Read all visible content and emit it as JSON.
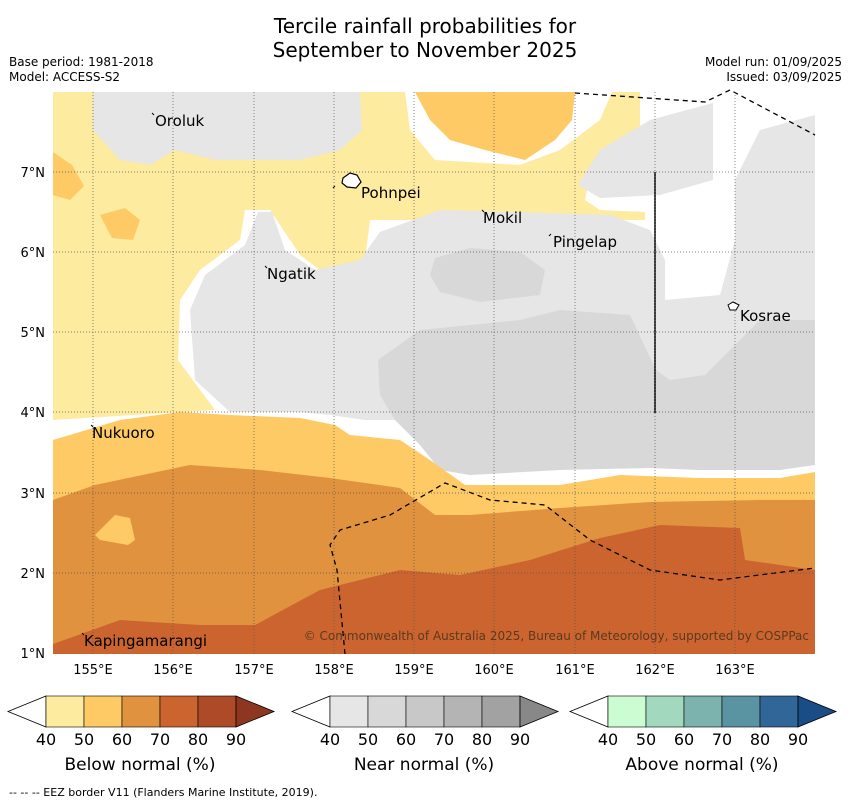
{
  "title_line1": "Tercile rainfall probabilities for",
  "title_line2": "September to November 2025",
  "base_period": "Base period: 1981-2018",
  "model": "Model: ACCESS-S2",
  "model_run": "Model run: 01/09/2025",
  "issued": "Issued: 03/09/2025",
  "copyright": "© Commonwealth of Australia 2025, Bureau of Meteorology, supported by COSPPac",
  "footer": "--  --  -- EEZ border V11 (Flanders Marine Institute, 2019).",
  "x_ticks": [
    "155°E",
    "156°E",
    "157°E",
    "158°E",
    "159°E",
    "160°E",
    "161°E",
    "162°E",
    "163°E"
  ],
  "y_ticks": [
    "7°N",
    "6°N",
    "5°N",
    "4°N",
    "3°N",
    "2°N",
    "1°N"
  ],
  "places": [
    {
      "name": "Oroluk"
    },
    {
      "name": "Pohnpei"
    },
    {
      "name": "Mokil"
    },
    {
      "name": "Pingelap"
    },
    {
      "name": "Ngatik"
    },
    {
      "name": "Kosrae"
    },
    {
      "name": "Nukuoro"
    },
    {
      "name": "Kapingamarangi"
    }
  ],
  "colorbars": [
    {
      "title": "Below normal (%)",
      "ticks": [
        "40",
        "50",
        "60",
        "70",
        "80",
        "90"
      ],
      "colors": [
        "#fdeba0",
        "#fdca66",
        "#e0923f",
        "#cc6430",
        "#ad4a28",
        "#8e3720"
      ]
    },
    {
      "title": "Near normal (%)",
      "ticks": [
        "40",
        "50",
        "60",
        "70",
        "80",
        "90"
      ],
      "colors": [
        "#e6e6e6",
        "#d8d8d8",
        "#c8c8c8",
        "#b4b4b4",
        "#a2a2a2",
        "#888888"
      ]
    },
    {
      "title": "Above normal (%)",
      "ticks": [
        "40",
        "50",
        "60",
        "70",
        "80",
        "90"
      ],
      "colors": [
        "#ccfcd2",
        "#a2d9be",
        "#7db3ae",
        "#5a93a2",
        "#316699",
        "#1a4d86"
      ]
    }
  ]
}
